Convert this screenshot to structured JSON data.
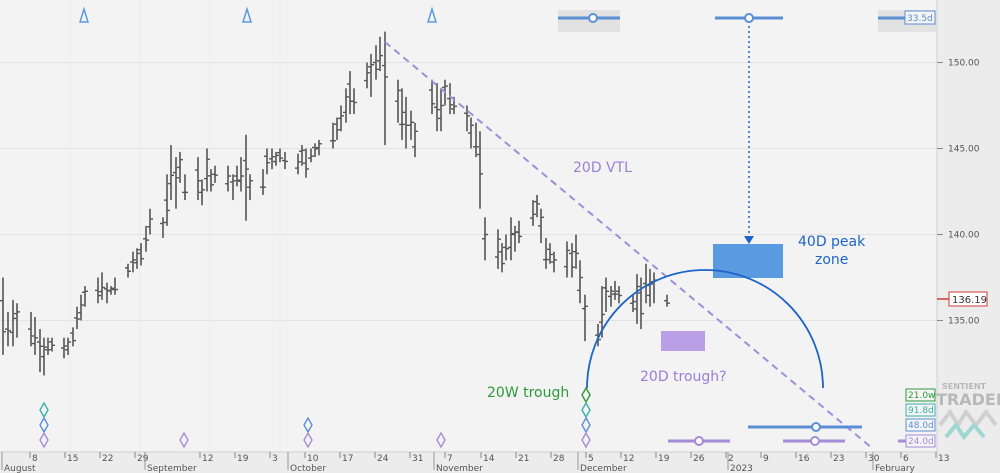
{
  "chart_data": {
    "type": "ohlc",
    "title": "",
    "ylim": [
      130,
      155
    ],
    "yticks": [
      135,
      140,
      145,
      150
    ],
    "ytick_labels": [
      "135.00",
      "140.00",
      "145.00",
      "150.00"
    ],
    "last_price": "136.19",
    "x_day_labels": [
      "8",
      "15",
      "22",
      "29",
      "12",
      "19",
      "3",
      "10",
      "17",
      "24",
      "31",
      "7",
      "14",
      "21",
      "28",
      "5",
      "12",
      "19",
      "26",
      "2",
      "9",
      "16",
      "23",
      "30",
      "6",
      "13"
    ],
    "x_month_labels": [
      "August",
      "September",
      "October",
      "November",
      "December",
      "2023",
      "February"
    ],
    "price_bars": [
      {
        "x": 3,
        "h": 137.5,
        "l": 133.0
      },
      {
        "x": 8,
        "h": 135.5,
        "l": 133.5
      },
      {
        "x": 13,
        "h": 136.2,
        "l": 133.5
      },
      {
        "x": 17,
        "h": 136.0,
        "l": 134.0
      },
      {
        "x": 31,
        "h": 135.5,
        "l": 133.5
      },
      {
        "x": 35,
        "h": 135.2,
        "l": 133.0
      },
      {
        "x": 40,
        "h": 134.5,
        "l": 132.0
      },
      {
        "x": 44,
        "h": 134.0,
        "l": 131.8
      },
      {
        "x": 48,
        "h": 134.0,
        "l": 133.0
      },
      {
        "x": 52,
        "h": 134.0,
        "l": 133.2
      },
      {
        "x": 64,
        "h": 134.0,
        "l": 132.8
      },
      {
        "x": 68,
        "h": 134.0,
        "l": 133.0
      },
      {
        "x": 73,
        "h": 134.6,
        "l": 133.5
      },
      {
        "x": 77,
        "h": 135.8,
        "l": 134.5
      },
      {
        "x": 81,
        "h": 136.5,
        "l": 135.0
      },
      {
        "x": 85,
        "h": 137.0,
        "l": 135.8
      },
      {
        "x": 98,
        "h": 137.5,
        "l": 136.0
      },
      {
        "x": 102,
        "h": 137.8,
        "l": 136.2
      },
      {
        "x": 107,
        "h": 137.2,
        "l": 136.0
      },
      {
        "x": 111,
        "h": 137.0,
        "l": 136.5
      },
      {
        "x": 115,
        "h": 137.5,
        "l": 136.5
      },
      {
        "x": 128,
        "h": 138.3,
        "l": 137.5
      },
      {
        "x": 133,
        "h": 139.0,
        "l": 137.8
      },
      {
        "x": 137,
        "h": 139.2,
        "l": 138.0
      },
      {
        "x": 141,
        "h": 139.5,
        "l": 138.2
      },
      {
        "x": 146,
        "h": 140.5,
        "l": 139.0
      },
      {
        "x": 150,
        "h": 141.5,
        "l": 140.0
      },
      {
        "x": 163,
        "h": 141.0,
        "l": 139.8
      },
      {
        "x": 167,
        "h": 143.5,
        "l": 140.5
      },
      {
        "x": 171,
        "h": 145.2,
        "l": 142.0
      },
      {
        "x": 176,
        "h": 144.5,
        "l": 141.5
      },
      {
        "x": 180,
        "h": 144.8,
        "l": 143.0
      },
      {
        "x": 185,
        "h": 143.5,
        "l": 142.0
      },
      {
        "x": 198,
        "h": 144.5,
        "l": 142.0
      },
      {
        "x": 202,
        "h": 143.2,
        "l": 141.7
      },
      {
        "x": 207,
        "h": 145.0,
        "l": 142.5
      },
      {
        "x": 211,
        "h": 143.8,
        "l": 142.5
      },
      {
        "x": 215,
        "h": 144.0,
        "l": 143.0
      },
      {
        "x": 228,
        "h": 144.0,
        "l": 142.5
      },
      {
        "x": 233,
        "h": 143.5,
        "l": 142.0
      },
      {
        "x": 237,
        "h": 144.0,
        "l": 142.8
      },
      {
        "x": 241,
        "h": 144.5,
        "l": 142.5
      },
      {
        "x": 246,
        "h": 145.8,
        "l": 140.8
      },
      {
        "x": 250,
        "h": 143.5,
        "l": 142.0
      },
      {
        "x": 263,
        "h": 143.8,
        "l": 142.3
      },
      {
        "x": 267,
        "h": 145.0,
        "l": 143.5
      },
      {
        "x": 272,
        "h": 145.0,
        "l": 143.8
      },
      {
        "x": 276,
        "h": 144.8,
        "l": 144.0
      },
      {
        "x": 280,
        "h": 145.0,
        "l": 144.2
      },
      {
        "x": 285,
        "h": 144.8,
        "l": 143.8
      },
      {
        "x": 298,
        "h": 144.7,
        "l": 143.5
      },
      {
        "x": 302,
        "h": 145.2,
        "l": 144.0
      },
      {
        "x": 306,
        "h": 145.0,
        "l": 143.3
      },
      {
        "x": 311,
        "h": 145.0,
        "l": 144.2
      },
      {
        "x": 315,
        "h": 145.3,
        "l": 144.5
      },
      {
        "x": 319,
        "h": 145.5,
        "l": 144.6
      },
      {
        "x": 333,
        "h": 146.5,
        "l": 145.0
      },
      {
        "x": 337,
        "h": 146.8,
        "l": 145.5
      },
      {
        "x": 341,
        "h": 147.5,
        "l": 146.0
      },
      {
        "x": 346,
        "h": 148.5,
        "l": 146.5
      },
      {
        "x": 350,
        "h": 149.5,
        "l": 147.0
      },
      {
        "x": 354,
        "h": 148.5,
        "l": 147.0
      },
      {
        "x": 367,
        "h": 150.0,
        "l": 148.5
      },
      {
        "x": 371,
        "h": 150.5,
        "l": 148.0
      },
      {
        "x": 376,
        "h": 151.0,
        "l": 149.0
      },
      {
        "x": 380,
        "h": 151.5,
        "l": 149.5
      },
      {
        "x": 385,
        "h": 151.8,
        "l": 145.2
      },
      {
        "x": 398,
        "h": 149.0,
        "l": 146.5
      },
      {
        "x": 402,
        "h": 148.5,
        "l": 145.5
      },
      {
        "x": 406,
        "h": 148.0,
        "l": 145.0
      },
      {
        "x": 411,
        "h": 147.2,
        "l": 145.5
      },
      {
        "x": 415,
        "h": 146.5,
        "l": 144.5
      },
      {
        "x": 432,
        "h": 149.0,
        "l": 147.0
      },
      {
        "x": 437,
        "h": 148.8,
        "l": 146.0
      },
      {
        "x": 441,
        "h": 148.5,
        "l": 146.0
      },
      {
        "x": 445,
        "h": 149.0,
        "l": 147.5
      },
      {
        "x": 450,
        "h": 148.8,
        "l": 147.0
      },
      {
        "x": 454,
        "h": 148.0,
        "l": 147.0
      },
      {
        "x": 467,
        "h": 147.5,
        "l": 146.0
      },
      {
        "x": 471,
        "h": 146.8,
        "l": 145.0
      },
      {
        "x": 476,
        "h": 146.5,
        "l": 144.5
      },
      {
        "x": 480,
        "h": 146.0,
        "l": 141.5
      },
      {
        "x": 485,
        "h": 141.0,
        "l": 138.5
      },
      {
        "x": 498,
        "h": 140.3,
        "l": 138.0
      },
      {
        "x": 502,
        "h": 139.5,
        "l": 137.8
      },
      {
        "x": 506,
        "h": 140.0,
        "l": 138.5
      },
      {
        "x": 511,
        "h": 141.0,
        "l": 138.5
      },
      {
        "x": 515,
        "h": 140.5,
        "l": 139.0
      },
      {
        "x": 519,
        "h": 140.8,
        "l": 139.5
      },
      {
        "x": 533,
        "h": 142.0,
        "l": 140.5
      },
      {
        "x": 537,
        "h": 142.3,
        "l": 141.0
      },
      {
        "x": 541,
        "h": 141.5,
        "l": 139.5
      },
      {
        "x": 546,
        "h": 139.8,
        "l": 138.0
      },
      {
        "x": 550,
        "h": 139.5,
        "l": 138.3
      },
      {
        "x": 554,
        "h": 139.0,
        "l": 137.8
      },
      {
        "x": 567,
        "h": 139.6,
        "l": 137.5
      },
      {
        "x": 572,
        "h": 139.5,
        "l": 137.5
      },
      {
        "x": 576,
        "h": 140.0,
        "l": 138.0
      },
      {
        "x": 580,
        "h": 138.5,
        "l": 136.0
      },
      {
        "x": 585,
        "h": 136.5,
        "l": 133.8
      },
      {
        "x": 598,
        "h": 134.8,
        "l": 133.5
      },
      {
        "x": 602,
        "h": 137.0,
        "l": 134.0
      },
      {
        "x": 606,
        "h": 137.5,
        "l": 135.5
      },
      {
        "x": 611,
        "h": 137.0,
        "l": 135.8
      },
      {
        "x": 615,
        "h": 137.3,
        "l": 136.2
      },
      {
        "x": 619,
        "h": 137.0,
        "l": 136.0
      },
      {
        "x": 633,
        "h": 136.5,
        "l": 135.5
      },
      {
        "x": 637,
        "h": 137.7,
        "l": 134.8
      },
      {
        "x": 641,
        "h": 137.5,
        "l": 134.5
      },
      {
        "x": 646,
        "h": 138.3,
        "l": 136.0
      },
      {
        "x": 650,
        "h": 138.0,
        "l": 135.8
      },
      {
        "x": 654,
        "h": 137.8,
        "l": 136.0
      },
      {
        "x": 667,
        "h": 136.5,
        "l": 135.8
      }
    ],
    "annotations": {
      "vtl_label": "20D VTL",
      "peak_zone_label_line1": "40D peak",
      "peak_zone_label_line2": "zone",
      "trough_20d_label": "20D trough?",
      "trough_20w_label": "20W trough"
    },
    "cycle_badges": [
      "33.5d",
      "21.0w",
      "91.8d",
      "48.0d",
      "24.0d"
    ],
    "colors": {
      "price": "#555555",
      "vtl": "#a58bd9",
      "blue": "#1e64c8",
      "purple_fill": "#b9a0e6",
      "green": "#2e9a3c",
      "red": "#d43a3a",
      "peak_zone": "#5a9ae0"
    }
  },
  "brand": {
    "name_top": "SENTIENT",
    "name_main": "TRADER"
  }
}
